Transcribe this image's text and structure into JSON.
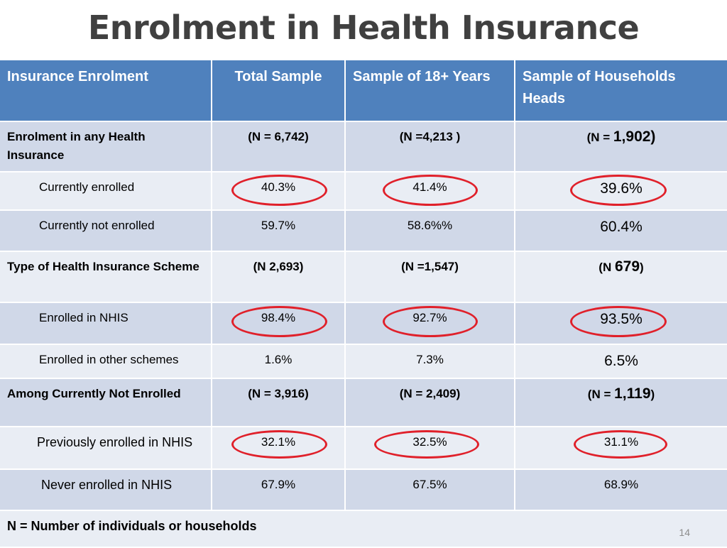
{
  "title": "Enrolment in Health Insurance",
  "header": {
    "col0": "Insurance Enrolment",
    "col1": "Total Sample",
    "col2": "Sample of 18+ Years",
    "col3": "Sample of Households Heads"
  },
  "rows": [
    {
      "label": "Enrolment in any Health Insurance",
      "v1": "(N = 6,742)",
      "v2": "(N =4,213 )",
      "v3_prefix": "(N = ",
      "v3_num": "1,902)",
      "v3_suffix": ""
    },
    {
      "label": "Currently enrolled",
      "v1": "40.3%",
      "v2": "41.4%",
      "v3": "39.6%"
    },
    {
      "label": "Currently not enrolled",
      "v1": "59.7%",
      "v2": "58.6%%",
      "v3": "60.4%"
    },
    {
      "label": "Type of Health Insurance Scheme",
      "v1": "(N 2,693)",
      "v2": "(N =1,547)",
      "v3_prefix": "(N ",
      "v3_num": "679",
      "v3_suffix": ")"
    },
    {
      "label": "Enrolled in NHIS",
      "v1": "98.4%",
      "v2": "92.7%",
      "v3": "93.5%"
    },
    {
      "label": "Enrolled in other schemes",
      "v1": "1.6%",
      "v2": "7.3%",
      "v3": "6.5%"
    },
    {
      "label": "Among Currently Not Enrolled",
      "v1": "(N = 3,916)",
      "v2": "(N = 2,409)",
      "v3_prefix": "(N = ",
      "v3_num": "1,119",
      "v3_suffix": ")"
    },
    {
      "label": "Previously enrolled in NHIS",
      "v1": "32.1%",
      "v2": "32.5%",
      "v3": "31.1%"
    },
    {
      "label": "Never enrolled in NHIS",
      "v1": "67.9%",
      "v2": "67.5%",
      "v3": "68.9%"
    }
  ],
  "footnote": "N = Number of individuals or households",
  "page_number": "14",
  "colors": {
    "header_bg": "#4f81bd",
    "row_dark": "#d0d8e8",
    "row_light": "#e9edf4",
    "highlight_ring": "#e0202a"
  }
}
